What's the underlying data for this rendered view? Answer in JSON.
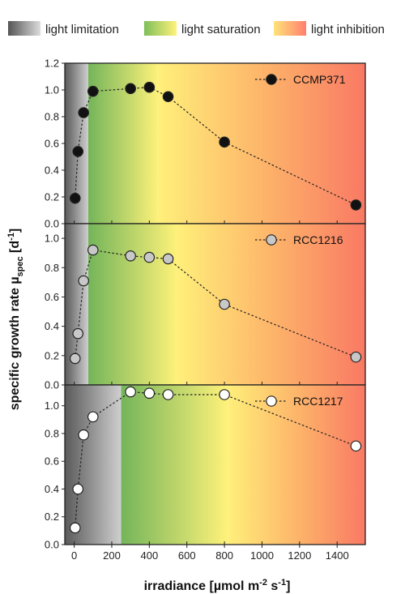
{
  "legend": {
    "items": [
      {
        "label": "light limitation",
        "from": "#555555",
        "to": "#dcdcdc"
      },
      {
        "label": "light saturation",
        "from": "#7fbf5a",
        "to": "#fff27a"
      },
      {
        "label": "light inhibition",
        "from": "#ffe37a",
        "to": "#ff7f6e"
      }
    ]
  },
  "zone_colors": {
    "limitation_dark": "#5a5a5a",
    "limitation_light": "#cfcfcf",
    "saturation_green": "#74b55a",
    "saturation_yellow": "#fff27a",
    "inhibition_yellow": "#ffef7a",
    "inhibition_orange": "#fdb56a",
    "inhibition_red": "#f97964"
  },
  "chart_data": [
    {
      "type": "scatter",
      "series": [
        {
          "name": "CCMP371",
          "marker": "#111111",
          "x": [
            5,
            20,
            50,
            100,
            300,
            400,
            500,
            800,
            1500
          ],
          "y": [
            0.19,
            0.54,
            0.83,
            0.99,
            1.01,
            1.02,
            0.95,
            0.61,
            0.14
          ]
        }
      ],
      "zones": {
        "limitation_end": 75,
        "saturation_end": 450
      },
      "xlim": [
        -50,
        1550
      ],
      "ylim": [
        0.0,
        1.2
      ],
      "yticks": [
        "0.0",
        "0.2",
        "0.4",
        "0.6",
        "0.8",
        "1.0",
        "1.2"
      ],
      "ytick_values": [
        0.0,
        0.2,
        0.4,
        0.6,
        0.8,
        1.0,
        1.2
      ]
    },
    {
      "type": "scatter",
      "series": [
        {
          "name": "RCC1216",
          "marker": "#c8c8c8",
          "x": [
            5,
            20,
            50,
            100,
            300,
            400,
            500,
            800,
            1500
          ],
          "y": [
            0.18,
            0.35,
            0.71,
            0.92,
            0.88,
            0.87,
            0.86,
            0.55,
            0.19
          ]
        }
      ],
      "zones": {
        "limitation_end": 75,
        "saturation_end": 550
      },
      "xlim": [
        -50,
        1550
      ],
      "ylim": [
        0.0,
        1.1
      ],
      "yticks": [
        "0.0",
        "0.2",
        "0.4",
        "0.6",
        "0.8",
        "1.0"
      ],
      "ytick_values": [
        0.0,
        0.2,
        0.4,
        0.6,
        0.8,
        1.0
      ]
    },
    {
      "type": "scatter",
      "series": [
        {
          "name": "RCC1217",
          "marker": "#ffffff",
          "x": [
            5,
            20,
            50,
            100,
            300,
            400,
            500,
            800,
            1500
          ],
          "y": [
            0.12,
            0.4,
            0.79,
            0.92,
            1.1,
            1.09,
            1.08,
            1.08,
            0.71
          ]
        }
      ],
      "zones": {
        "limitation_end": 250,
        "saturation_end": 820
      },
      "xlim": [
        -50,
        1550
      ],
      "ylim": [
        0.0,
        1.15
      ],
      "yticks": [
        "0.0",
        "0.2",
        "0.4",
        "0.6",
        "0.8",
        "1.0"
      ],
      "ytick_values": [
        0.0,
        0.2,
        0.4,
        0.6,
        0.8,
        1.0
      ]
    }
  ],
  "x_axis": {
    "ticks": [
      "0",
      "200",
      "400",
      "600",
      "800",
      "1000",
      "1200",
      "1400"
    ],
    "tick_values": [
      0,
      200,
      400,
      600,
      800,
      1000,
      1200,
      1400
    ],
    "label_main": "irradiance [µmol m",
    "label_sup1": "-2",
    "label_mid": " s",
    "label_sup2": "-1",
    "label_end": "]"
  },
  "y_axis": {
    "label_main": "specific growth rate µ",
    "label_sub": "spec",
    "label_mid": " [d",
    "label_sup": "-1",
    "label_end": "]"
  }
}
